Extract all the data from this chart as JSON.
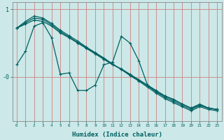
{
  "xlabel": "Humidex (Indice chaleur)",
  "bg_color": "#cce8e8",
  "line_color": "#006060",
  "grid_color": "#d08080",
  "xlim": [
    -0.5,
    23.5
  ],
  "ylim": [
    -0.65,
    1.1
  ],
  "yticks": [
    1.0,
    0.0
  ],
  "ytick_labels": [
    "1",
    "-0"
  ],
  "straight1_x": [
    0,
    1,
    2,
    3,
    4,
    5,
    6,
    7,
    8,
    9,
    10,
    11,
    12,
    13,
    14,
    15,
    16,
    17,
    18,
    19,
    20,
    21,
    22,
    23
  ],
  "straight1_y": [
    0.72,
    0.78,
    0.84,
    0.82,
    0.75,
    0.65,
    0.58,
    0.5,
    0.42,
    0.34,
    0.26,
    0.18,
    0.12,
    0.04,
    -0.04,
    -0.12,
    -0.2,
    -0.28,
    -0.34,
    -0.4,
    -0.46,
    -0.42,
    -0.46,
    -0.48
  ],
  "straight2_x": [
    0,
    1,
    2,
    3,
    4,
    5,
    6,
    7,
    8,
    9,
    10,
    11,
    12,
    13,
    14,
    15,
    16,
    17,
    18,
    19,
    20,
    21,
    22,
    23
  ],
  "straight2_y": [
    0.72,
    0.8,
    0.87,
    0.85,
    0.77,
    0.67,
    0.59,
    0.51,
    0.43,
    0.35,
    0.27,
    0.19,
    0.11,
    0.03,
    -0.05,
    -0.13,
    -0.22,
    -0.3,
    -0.36,
    -0.42,
    -0.48,
    -0.42,
    -0.46,
    -0.48
  ],
  "straight3_x": [
    0,
    1,
    2,
    3,
    4,
    5,
    6,
    7,
    8,
    9,
    10,
    11,
    12,
    13,
    14,
    15,
    16,
    17,
    18,
    19,
    20,
    21,
    22,
    23
  ],
  "straight3_y": [
    0.72,
    0.82,
    0.9,
    0.87,
    0.79,
    0.69,
    0.61,
    0.53,
    0.44,
    0.36,
    0.28,
    0.19,
    0.11,
    0.02,
    -0.06,
    -0.15,
    -0.24,
    -0.32,
    -0.38,
    -0.44,
    -0.5,
    -0.44,
    -0.48,
    -0.5
  ],
  "jagged_x": [
    0,
    1,
    2,
    3,
    4,
    5,
    6,
    7,
    8,
    9,
    10,
    11,
    12,
    13,
    14,
    15,
    16,
    17,
    18,
    19,
    20,
    21,
    22,
    23
  ],
  "jagged_y": [
    0.18,
    0.38,
    0.75,
    0.8,
    0.58,
    0.04,
    0.06,
    -0.2,
    -0.2,
    -0.12,
    0.18,
    0.22,
    0.6,
    0.5,
    0.24,
    -0.12,
    -0.22,
    -0.28,
    -0.33,
    -0.4,
    -0.46,
    -0.4,
    -0.46,
    -0.48
  ]
}
